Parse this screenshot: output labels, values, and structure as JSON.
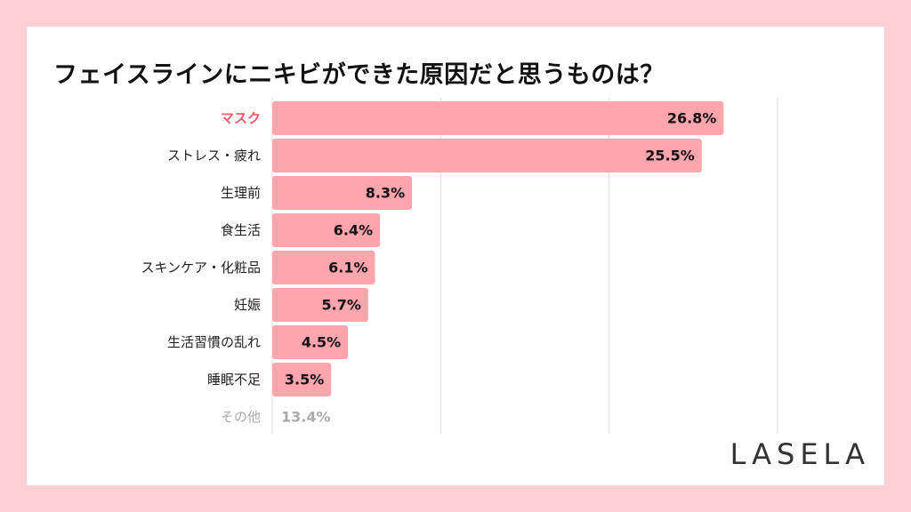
{
  "title": "フェイスラインにニキビができた原因だと思うものは？",
  "brand": "LASELA",
  "colors": {
    "page_background": "#fdd0d3",
    "bar": "#ffa5ae",
    "highlight_label": "#f05a6a",
    "label": "#222222",
    "muted": "#aaaaaa",
    "gridline": "#dddddd"
  },
  "chart_data": {
    "type": "bar",
    "orientation": "horizontal",
    "categories": [
      "マスク",
      "ストレス・疲れ",
      "生理前",
      "食生活",
      "スキンケア・化粧品",
      "妊娠",
      "生活習慣の乱れ",
      "睡眠不足",
      "その他"
    ],
    "values": [
      26.8,
      25.5,
      8.3,
      6.4,
      6.1,
      5.7,
      4.5,
      3.5,
      13.4
    ],
    "value_labels": [
      "26.8%",
      "25.5%",
      "8.3%",
      "6.4%",
      "6.1%",
      "5.7%",
      "4.5%",
      "3.5%",
      "13.4%"
    ],
    "highlight": [
      true,
      false,
      false,
      false,
      false,
      false,
      false,
      false,
      false
    ],
    "muted": [
      false,
      false,
      false,
      false,
      false,
      false,
      false,
      false,
      true
    ],
    "xlim": [
      0,
      30
    ],
    "gridlines": [
      10,
      20,
      30
    ],
    "grid": true,
    "legend": "none"
  }
}
